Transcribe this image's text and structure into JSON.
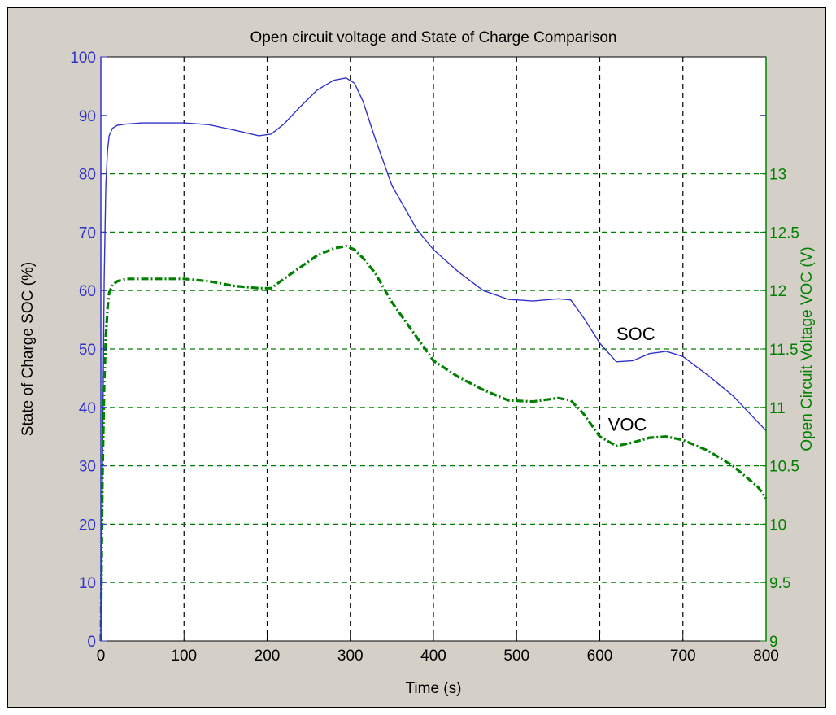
{
  "chart_data": {
    "type": "line",
    "title": "Open circuit voltage and State of Charge Comparison",
    "xlabel": "Time (s)",
    "ylabel_left": "State of Charge SOC (%)",
    "ylabel_right": "Open Circuit Voltage VOC (V)",
    "xlim": [
      0,
      800
    ],
    "ylim_left": [
      0,
      100
    ],
    "ylim_right": [
      9,
      14
    ],
    "x_ticks": [
      0,
      100,
      200,
      300,
      400,
      500,
      600,
      700,
      800
    ],
    "y_left_ticks": [
      0,
      10,
      20,
      30,
      40,
      50,
      60,
      70,
      80,
      90,
      100
    ],
    "y_right_ticks": [
      9,
      9.5,
      10,
      10.5,
      11,
      11.5,
      12,
      12.5,
      13
    ],
    "x_tick_labels": [
      "0",
      "100",
      "200",
      "300",
      "400",
      "500",
      "600",
      "700",
      "800"
    ],
    "y_left_tick_labels": [
      "0",
      "10",
      "20",
      "30",
      "40",
      "50",
      "60",
      "70",
      "80",
      "90",
      "100"
    ],
    "y_right_tick_labels": [
      "9",
      "9.5",
      "10",
      "10.5",
      "11",
      "11.5",
      "12",
      "12.5",
      "13"
    ],
    "grid": true,
    "colors": {
      "soc": "#3333cc",
      "voc": "#008000",
      "left_axis": "#3333cc",
      "right_axis": "#008000",
      "grid": "#000000",
      "grid_right": "#008000",
      "background": "#d4d0c8",
      "plot_area": "#ffffff"
    },
    "series": [
      {
        "name": "SOC",
        "axis": "left",
        "style": "solid",
        "x": [
          0,
          2,
          4,
          6,
          8,
          10,
          14,
          20,
          30,
          50,
          100,
          130,
          160,
          190,
          205,
          220,
          240,
          260,
          280,
          295,
          305,
          315,
          330,
          350,
          380,
          400,
          430,
          460,
          490,
          520,
          550,
          565,
          580,
          600,
          620,
          640,
          660,
          680,
          700,
          730,
          760,
          790,
          800
        ],
        "y": [
          0,
          30,
          62,
          78,
          84,
          86.5,
          87.8,
          88.3,
          88.5,
          88.7,
          88.7,
          88.4,
          87.5,
          86.5,
          86.8,
          88.5,
          91.5,
          94.3,
          96,
          96.4,
          95.5,
          92.5,
          86,
          78,
          70.5,
          67,
          63.2,
          60,
          58.5,
          58.2,
          58.6,
          58.4,
          55.5,
          51,
          47.8,
          48,
          49.2,
          49.6,
          48.7,
          45.5,
          42,
          37.5,
          36
        ],
        "label": "SOC",
        "label_x": 620,
        "label_y": 51.5
      },
      {
        "name": "VOC",
        "axis": "right",
        "style": "dash-dot",
        "x": [
          0,
          2,
          4,
          6,
          8,
          10,
          14,
          20,
          30,
          60,
          100,
          130,
          160,
          190,
          205,
          220,
          240,
          260,
          280,
          295,
          305,
          315,
          330,
          350,
          380,
          400,
          430,
          460,
          490,
          520,
          550,
          565,
          580,
          600,
          620,
          640,
          660,
          680,
          700,
          730,
          760,
          790,
          800
        ],
        "y": [
          9,
          10.4,
          11.2,
          11.6,
          11.85,
          11.98,
          12.05,
          12.08,
          12.1,
          12.1,
          12.1,
          12.08,
          12.04,
          12.02,
          12.02,
          12.1,
          12.2,
          12.3,
          12.36,
          12.38,
          12.35,
          12.28,
          12.15,
          11.9,
          11.6,
          11.4,
          11.26,
          11.15,
          11.06,
          11.05,
          11.08,
          11.06,
          10.95,
          10.75,
          10.67,
          10.7,
          10.74,
          10.75,
          10.72,
          10.63,
          10.5,
          10.32,
          10.22
        ],
        "label": "VOC",
        "label_x": 610,
        "label_y": 10.8
      }
    ]
  }
}
